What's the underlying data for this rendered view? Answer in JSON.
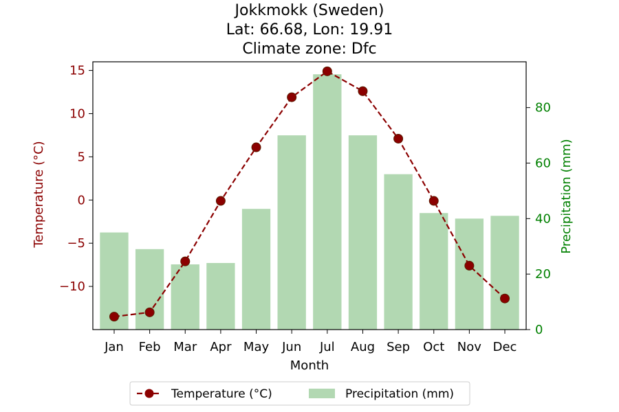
{
  "chart_data": {
    "type": "bar+line",
    "title": [
      "Jokkmokk (Sweden)",
      "Lat: 66.68, Lon: 19.91",
      "Climate zone: Dfc"
    ],
    "xlabel": "Month",
    "categories": [
      "Jan",
      "Feb",
      "Mar",
      "Apr",
      "May",
      "Jun",
      "Jul",
      "Aug",
      "Sep",
      "Oct",
      "Nov",
      "Dec"
    ],
    "left_axis": {
      "label": "Temperature (°C)",
      "color": "#8b0000",
      "ylim": [
        -15.0,
        16.0
      ],
      "ticks": [
        15,
        10,
        5,
        0,
        -5,
        -10
      ],
      "tick_labels": [
        "15",
        "10",
        "5",
        "0",
        "−5",
        "−10"
      ]
    },
    "right_axis": {
      "label": "Precipitation (mm)",
      "color": "#008000",
      "ylim": [
        0,
        96.5
      ],
      "ticks": [
        0,
        20,
        40,
        60,
        80
      ],
      "tick_labels": [
        "0",
        "20",
        "40",
        "60",
        "80"
      ]
    },
    "series": [
      {
        "name": "Temperature (°C)",
        "type": "line",
        "axis": "left",
        "color": "#8b0000",
        "linestyle": "dashed",
        "marker": "circle",
        "values": [
          -13.5,
          -13.0,
          -7.1,
          -0.1,
          6.1,
          11.9,
          14.9,
          12.6,
          7.1,
          -0.1,
          -7.6,
          -11.4
        ]
      },
      {
        "name": "Precipitation (mm)",
        "type": "bar",
        "axis": "right",
        "color": "#b2d8b2",
        "values": [
          35,
          29,
          23.5,
          24,
          43.5,
          70,
          92,
          70,
          56,
          42,
          40,
          41
        ]
      }
    ],
    "legend": {
      "placement": "bottom-center"
    },
    "grid": false
  }
}
